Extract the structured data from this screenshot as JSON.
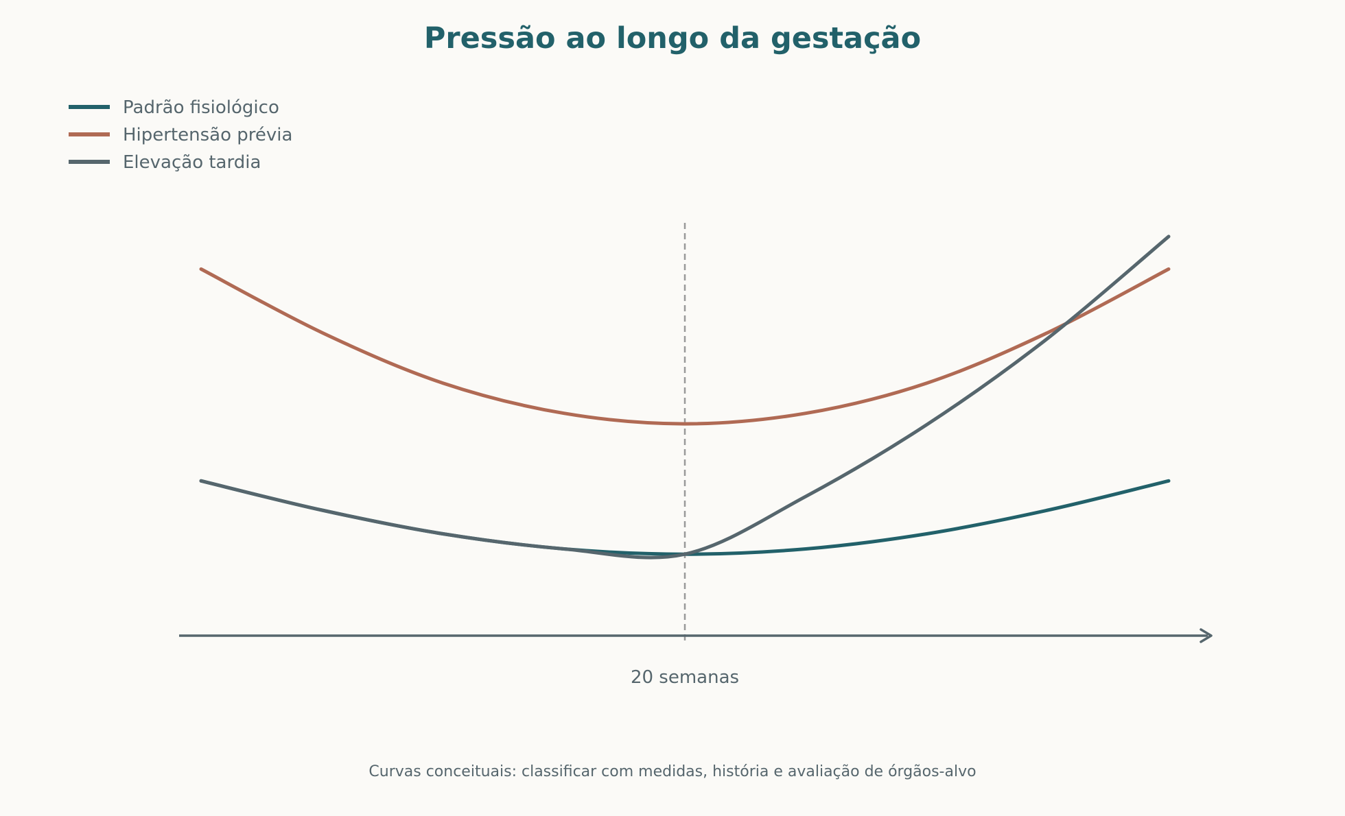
{
  "chart_data": {
    "type": "line",
    "title": "Pressão ao longo da gestação",
    "xlabel": "",
    "ylabel": "",
    "x_ticks": [
      {
        "x": 20,
        "label": "20 semanas"
      }
    ],
    "reference_line": {
      "x": 20,
      "style": "dashed"
    },
    "xlim": [
      0,
      40
    ],
    "ylim": [
      0,
      100
    ],
    "legend": {
      "position": "top-left"
    },
    "grid": false,
    "series": [
      {
        "name": "Padrão fisiológico",
        "color": "#22616a",
        "x": [
          0,
          5,
          10,
          15,
          20,
          25,
          30,
          35,
          40
        ],
        "y": [
          38,
          30.8,
          25,
          21.3,
          20,
          21.3,
          25,
          30.8,
          38
        ]
      },
      {
        "name": "Hipertensão prévia",
        "color": "#b06a54",
        "x": [
          0,
          5,
          10,
          15,
          20,
          25,
          30,
          35,
          40
        ],
        "y": [
          90,
          74.4,
          62,
          54.6,
          52,
          54.6,
          62,
          74.4,
          90
        ]
      },
      {
        "name": "Elevação tardia",
        "color": "#56666d",
        "x": [
          0,
          5,
          10,
          15,
          20,
          25,
          30,
          35,
          40
        ],
        "y": [
          38,
          30.8,
          25,
          21.3,
          20,
          34.2,
          51.8,
          73,
          98
        ]
      }
    ],
    "footnote": "Curvas conceituais: classificar com medidas, história e avaliação de órgãos-alvo"
  },
  "colors": {
    "title": "#22616a",
    "text": "#56666d",
    "axis": "#56666d",
    "reference": "#999999",
    "background": "#fbfaf7"
  }
}
